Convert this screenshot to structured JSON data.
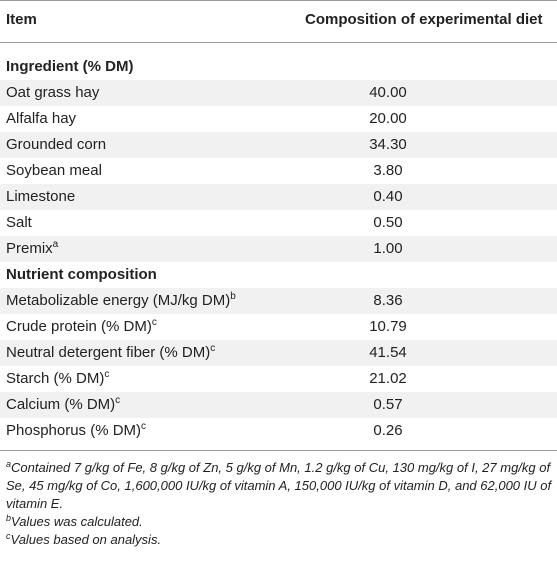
{
  "header": {
    "item": "Item",
    "composition": "Composition of experimental diet"
  },
  "sections": [
    {
      "title": "Ingredient (% DM)",
      "rows": [
        {
          "label": "Oat grass hay",
          "sup": "",
          "value": "40.00"
        },
        {
          "label": "Alfalfa hay",
          "sup": "",
          "value": "20.00"
        },
        {
          "label": "Grounded corn",
          "sup": "",
          "value": "34.30"
        },
        {
          "label": "Soybean meal",
          "sup": "",
          "value": "3.80"
        },
        {
          "label": "Limestone",
          "sup": "",
          "value": "0.40"
        },
        {
          "label": "Salt",
          "sup": "",
          "value": "0.50"
        },
        {
          "label": "Premix",
          "sup": "a",
          "value": "1.00"
        }
      ]
    },
    {
      "title": "Nutrient composition",
      "rows": [
        {
          "label": "Metabolizable energy (MJ/kg DM)",
          "sup": "b",
          "value": "8.36"
        },
        {
          "label": "Crude protein (% DM)",
          "sup": "c",
          "value": "10.79"
        },
        {
          "label": "Neutral detergent fiber (% DM)",
          "sup": "c",
          "value": "41.54"
        },
        {
          "label": "Starch (% DM)",
          "sup": "c",
          "value": "21.02"
        },
        {
          "label": "Calcium (% DM)",
          "sup": "c",
          "value": "0.57"
        },
        {
          "label": "Phosphorus (% DM)",
          "sup": "c",
          "value": "0.26"
        }
      ]
    }
  ],
  "footnotes": [
    {
      "mark": "a",
      "text": "Contained 7 g/kg of Fe, 8 g/kg of Zn, 5 g/kg of Mn, 1.2 g/kg of Cu, 130 mg/kg of I, 27 mg/kg of Se, 45 mg/kg of Co, 1,600,000 IU/kg of vitamin A, 150,000 IU/kg of vitamin D, and 62,000 IU of vitamin E."
    },
    {
      "mark": "b",
      "text": "Values was calculated."
    },
    {
      "mark": "c",
      "text": "Values based on analysis."
    }
  ]
}
